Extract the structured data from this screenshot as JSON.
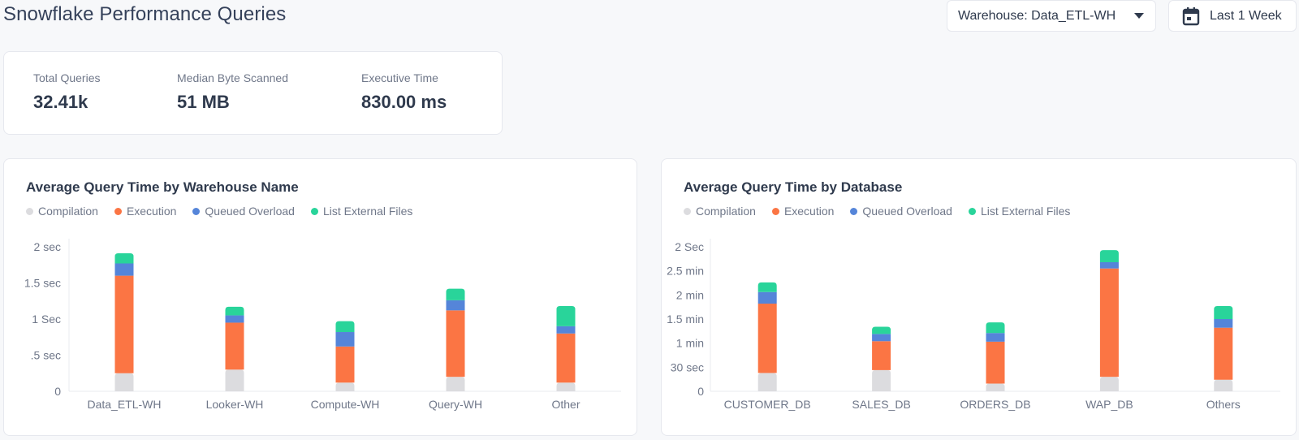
{
  "header": {
    "title": "Snowflake Performance Queries",
    "warehouse_label": "Warehouse: Data_ETL-WH",
    "date_range_label": "Last 1 Week"
  },
  "stats": [
    {
      "label": "Total Queries",
      "value": "32.41k"
    },
    {
      "label": "Median Byte Scanned",
      "value": "51 MB"
    },
    {
      "label": "Executive Time",
      "value": "830.00 ms"
    }
  ],
  "colors": {
    "compilation": "#dcdcdf",
    "execution": "#fb7544",
    "queued_overload": "#5585d9",
    "list_external_files": "#29d49a"
  },
  "legend": [
    "Compilation",
    "Execution",
    "Queued Overload",
    "List External Files"
  ],
  "chart_data": [
    {
      "type": "bar",
      "stacked": true,
      "title": "Average Query Time by Warehouse Name",
      "categories": [
        "Data_ETL-WH",
        "Looker-WH",
        "Compute-WH",
        "Query-WH",
        "Other"
      ],
      "y_ticks": [
        "2 sec",
        "1.5 sec",
        "1 Sec",
        ".5 sec",
        "0"
      ],
      "unit": "sec",
      "ylim": [
        0,
        2
      ],
      "series": [
        {
          "name": "Compilation",
          "values": [
            0.25,
            0.3,
            0.12,
            0.2,
            0.12
          ]
        },
        {
          "name": "Execution",
          "values": [
            1.35,
            0.65,
            0.5,
            0.92,
            0.68
          ]
        },
        {
          "name": "Queued Overload",
          "values": [
            0.17,
            0.1,
            0.2,
            0.14,
            0.1
          ]
        },
        {
          "name": "List External Files",
          "values": [
            0.14,
            0.12,
            0.15,
            0.16,
            0.28
          ]
        }
      ],
      "grid": false,
      "legend_position": "top-left"
    },
    {
      "type": "bar",
      "stacked": true,
      "title": "Average Query Time by Database",
      "categories": [
        "CUSTOMER_DB",
        "SALES_DB",
        "ORDERS_DB",
        "WAP_DB",
        "Others"
      ],
      "y_ticks": [
        "2 Sec",
        "2.5 min",
        "2 min",
        "1.5 min",
        "1 min",
        "30 sec",
        "0"
      ],
      "unit": "min",
      "ylim": [
        0,
        3
      ],
      "series": [
        {
          "name": "Compilation",
          "values": [
            0.38,
            0.44,
            0.16,
            0.3,
            0.24
          ]
        },
        {
          "name": "Execution",
          "values": [
            1.44,
            0.6,
            0.87,
            2.25,
            1.08
          ]
        },
        {
          "name": "Queued Overload",
          "values": [
            0.24,
            0.15,
            0.18,
            0.13,
            0.18
          ]
        },
        {
          "name": "List External Files",
          "values": [
            0.2,
            0.15,
            0.22,
            0.25,
            0.27
          ]
        }
      ],
      "grid": false,
      "legend_position": "top-left"
    }
  ]
}
